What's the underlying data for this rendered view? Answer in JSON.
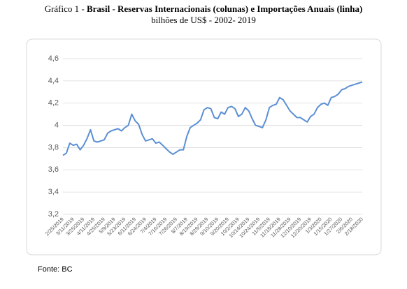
{
  "chart_data": {
    "type": "line",
    "title_prefix": "Gráfico 1 -",
    "title": "Brasil - Reservas Internacionais (colunas) e Importações Anuais (linha)",
    "subtitle": "bilhões de US$ - 2002- 2019",
    "source": "Fonte: BC",
    "categories": [
      "2/25/2019",
      null,
      null,
      "3/11/2019",
      null,
      null,
      "3/25/2019",
      null,
      null,
      "4/11/2019",
      null,
      null,
      "4/25/2019",
      null,
      null,
      "5/9/2019",
      null,
      null,
      "5/23/2019",
      null,
      null,
      "6/11/2019",
      null,
      null,
      "6/24/2019",
      null,
      null,
      "7/4/2019",
      null,
      null,
      "7/16/2019",
      null,
      null,
      "7/26/2019",
      null,
      null,
      "8/7/2019",
      null,
      null,
      "8/19/2019",
      null,
      null,
      "8/29/2019",
      null,
      null,
      "9/10/2019",
      null,
      null,
      "9/20/2019",
      null,
      null,
      "10/2/2019",
      null,
      null,
      "10/14/2019",
      null,
      null,
      "10/24/2019",
      null,
      null,
      "11/5/2019",
      null,
      null,
      "11/18/2019",
      null,
      null,
      "11/28/2019",
      null,
      null,
      "12/10/2019",
      null,
      null,
      "12/20/2019",
      null,
      null,
      "1/3/2020",
      null,
      null,
      "1/15/2020",
      null,
      null,
      "1/27/2020",
      null,
      null,
      "2/6/2020",
      null,
      null,
      "2/18/2020"
    ],
    "values": [
      3.73,
      3.75,
      3.84,
      3.82,
      3.83,
      3.78,
      3.82,
      3.88,
      3.96,
      3.86,
      3.85,
      3.86,
      3.87,
      3.93,
      3.95,
      3.96,
      3.97,
      3.95,
      3.98,
      4.0,
      4.1,
      4.04,
      4.01,
      3.92,
      3.86,
      3.87,
      3.88,
      3.84,
      3.85,
      3.82,
      3.79,
      3.76,
      3.74,
      3.76,
      3.78,
      3.78,
      3.9,
      3.98,
      4.0,
      4.02,
      4.05,
      4.14,
      4.16,
      4.15,
      4.07,
      4.06,
      4.12,
      4.1,
      4.16,
      4.17,
      4.15,
      4.08,
      4.1,
      4.16,
      4.13,
      4.06,
      4.0,
      3.99,
      3.98,
      4.05,
      4.16,
      4.18,
      4.19,
      4.25,
      4.23,
      4.18,
      4.13,
      4.1,
      4.07,
      4.07,
      4.05,
      4.03,
      4.08,
      4.1,
      4.16,
      4.19,
      4.2,
      4.18,
      4.25,
      4.26,
      4.28,
      4.32,
      4.33,
      4.35,
      4.36,
      4.37,
      4.38,
      4.39
    ],
    "color": "#5b8fd4",
    "ylim": [
      3.2,
      4.6
    ],
    "yticks": [
      {
        "value": 3.2,
        "label": "3,2"
      },
      {
        "value": 3.4,
        "label": "3,4"
      },
      {
        "value": 3.6,
        "label": "3,6"
      },
      {
        "value": 3.8,
        "label": "3,8"
      },
      4,
      {
        "value": 4.2,
        "label": "4,2"
      },
      {
        "value": 4.4,
        "label": "4,4"
      },
      {
        "value": 4.6,
        "label": "4,6"
      }
    ],
    "grid": true
  }
}
